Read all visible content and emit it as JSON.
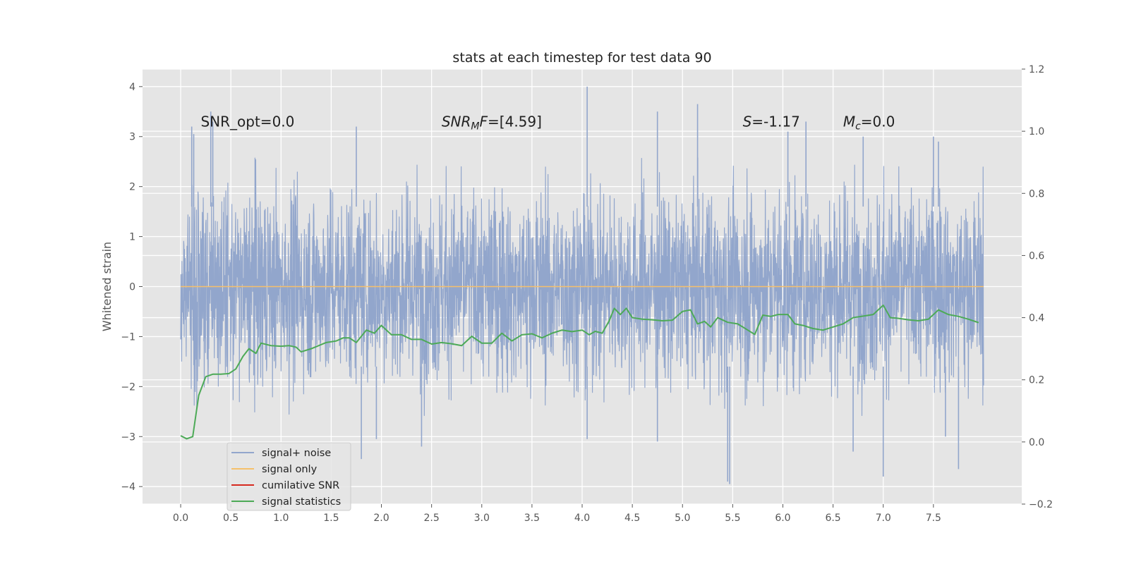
{
  "chart_data": {
    "type": "line",
    "title": "stats at each timestep for test data 90",
    "xlabel": "",
    "ylabel": "Whitened strain",
    "xlim": [
      -0.38,
      8.38
    ],
    "ylim": [
      -4.35,
      4.35
    ],
    "ylim_right": [
      -0.2,
      1.2
    ],
    "grid": true,
    "x_ticks": [
      0.0,
      0.5,
      1.0,
      1.5,
      2.0,
      2.5,
      3.0,
      3.5,
      4.0,
      4.5,
      5.0,
      5.5,
      6.0,
      6.5,
      7.0,
      7.5
    ],
    "x_tick_labels": [
      "0.0",
      "0.5",
      "1.0",
      "1.5",
      "2.0",
      "2.5",
      "3.0",
      "3.5",
      "4.0",
      "4.5",
      "5.0",
      "5.5",
      "6.0",
      "6.5",
      "7.0",
      "7.5"
    ],
    "y_ticks": [
      4,
      3,
      2,
      1,
      0,
      -1,
      -2,
      -3,
      -4
    ],
    "y_tick_labels": [
      "4",
      "3",
      "2",
      "1",
      "0",
      "−1",
      "−2",
      "−3",
      "−4"
    ],
    "y_ticks_right": [
      1.2,
      1.0,
      0.8,
      0.6,
      0.4,
      0.2,
      0.0,
      -0.2
    ],
    "y_tick_labels_right": [
      "1.2",
      "1.0",
      "0.8",
      "0.6",
      "0.4",
      "0.2",
      "0.0",
      "−0.2"
    ],
    "annotations": [
      {
        "name": "snr-opt",
        "x": 0.2,
        "y": 3.2,
        "parts": [
          {
            "t": "SNR_opt=0.0"
          }
        ]
      },
      {
        "name": "snr-mf",
        "x": 2.6,
        "y": 3.2,
        "parts": [
          {
            "t": "SNR",
            "italic": true
          },
          {
            "t": "M",
            "italic": true,
            "sub": true
          },
          {
            "t": "F",
            "italic": true
          },
          {
            "t": "=[4.59]"
          }
        ]
      },
      {
        "name": "s-stat",
        "x": 5.6,
        "y": 3.2,
        "parts": [
          {
            "t": "S",
            "italic": true
          },
          {
            "t": "=-1.17"
          }
        ]
      },
      {
        "name": "mc",
        "x": 6.6,
        "y": 3.2,
        "parts": [
          {
            "t": "M",
            "italic": true
          },
          {
            "t": "c",
            "italic": true,
            "sub": true
          },
          {
            "t": "=0.0"
          }
        ]
      }
    ],
    "legend": {
      "placement": "lower-left",
      "entries": [
        {
          "label": "signal+ noise",
          "color": "#92a6cc"
        },
        {
          "label": "signal only",
          "color": "#f5c06b"
        },
        {
          "label": "cumilative SNR",
          "color": "#d62a1f"
        },
        {
          "label": "signal statistics",
          "color": "#4daa57"
        }
      ]
    },
    "series": [
      {
        "name": "signal+ noise",
        "color": "#92a6cc",
        "axis": "left",
        "description_of_values": "whitened strain noise samples spanning 0.0-8.0",
        "x_range": [
          0.0,
          8.0
        ],
        "envelope_typical": [
          -1.9,
          1.9
        ],
        "peaks": [
          [
            0.11,
            3.2
          ],
          [
            0.13,
            3.05
          ],
          [
            0.3,
            3.5
          ],
          [
            0.32,
            3.3
          ],
          [
            1.75,
            3.2
          ],
          [
            4.05,
            4.0
          ],
          [
            4.75,
            3.5
          ],
          [
            5.15,
            3.65
          ],
          [
            5.45,
            -3.9
          ],
          [
            5.47,
            -3.95
          ],
          [
            6.05,
            3.1
          ],
          [
            6.23,
            3.3
          ],
          [
            6.8,
            3.0
          ],
          [
            7.5,
            3.0
          ],
          [
            7.55,
            2.9
          ],
          [
            1.8,
            -3.45
          ],
          [
            1.95,
            -3.05
          ],
          [
            2.4,
            -3.2
          ],
          [
            4.05,
            -3.05
          ],
          [
            4.75,
            -3.1
          ],
          [
            6.7,
            -3.3
          ],
          [
            7.0,
            -3.8
          ],
          [
            7.75,
            -3.65
          ],
          [
            7.62,
            -3.0
          ]
        ]
      },
      {
        "name": "signal only",
        "color": "#f5c06b",
        "axis": "left",
        "x": [
          0.0,
          8.0
        ],
        "values": [
          0.0,
          0.0
        ]
      },
      {
        "name": "signal statistics",
        "color": "#4daa57",
        "axis": "right",
        "x": [
          0.0,
          0.06,
          0.12,
          0.18,
          0.25,
          0.32,
          0.4,
          0.48,
          0.55,
          0.62,
          0.68,
          0.75,
          0.8,
          0.9,
          1.0,
          1.08,
          1.15,
          1.2,
          1.3,
          1.45,
          1.55,
          1.62,
          1.68,
          1.75,
          1.85,
          1.93,
          2.0,
          2.1,
          2.2,
          2.3,
          2.4,
          2.5,
          2.6,
          2.7,
          2.8,
          2.9,
          3.0,
          3.1,
          3.2,
          3.3,
          3.4,
          3.5,
          3.6,
          3.7,
          3.8,
          3.9,
          4.0,
          4.07,
          4.13,
          4.2,
          4.27,
          4.32,
          4.38,
          4.44,
          4.5,
          4.6,
          4.7,
          4.8,
          4.9,
          5.0,
          5.08,
          5.15,
          5.22,
          5.28,
          5.35,
          5.45,
          5.55,
          5.65,
          5.72,
          5.8,
          5.88,
          5.95,
          6.05,
          6.12,
          6.2,
          6.3,
          6.4,
          6.5,
          6.6,
          6.7,
          6.8,
          6.9,
          7.0,
          7.07,
          7.15,
          7.25,
          7.35,
          7.45,
          7.55,
          7.65,
          7.75,
          7.85,
          7.95
        ],
        "values": [
          0.02,
          0.01,
          0.017,
          0.15,
          0.21,
          0.218,
          0.218,
          0.22,
          0.235,
          0.275,
          0.3,
          0.285,
          0.318,
          0.31,
          0.308,
          0.31,
          0.305,
          0.29,
          0.3,
          0.32,
          0.325,
          0.335,
          0.335,
          0.32,
          0.36,
          0.35,
          0.375,
          0.345,
          0.345,
          0.33,
          0.33,
          0.315,
          0.32,
          0.316,
          0.31,
          0.34,
          0.318,
          0.318,
          0.35,
          0.325,
          0.345,
          0.348,
          0.335,
          0.35,
          0.36,
          0.355,
          0.36,
          0.345,
          0.356,
          0.35,
          0.39,
          0.43,
          0.41,
          0.43,
          0.4,
          0.395,
          0.393,
          0.39,
          0.392,
          0.42,
          0.425,
          0.38,
          0.388,
          0.37,
          0.4,
          0.385,
          0.38,
          0.36,
          0.346,
          0.408,
          0.404,
          0.41,
          0.41,
          0.38,
          0.375,
          0.365,
          0.36,
          0.37,
          0.38,
          0.4,
          0.405,
          0.41,
          0.44,
          0.4,
          0.398,
          0.393,
          0.39,
          0.395,
          0.425,
          0.41,
          0.404,
          0.395,
          0.384
        ]
      }
    ]
  }
}
